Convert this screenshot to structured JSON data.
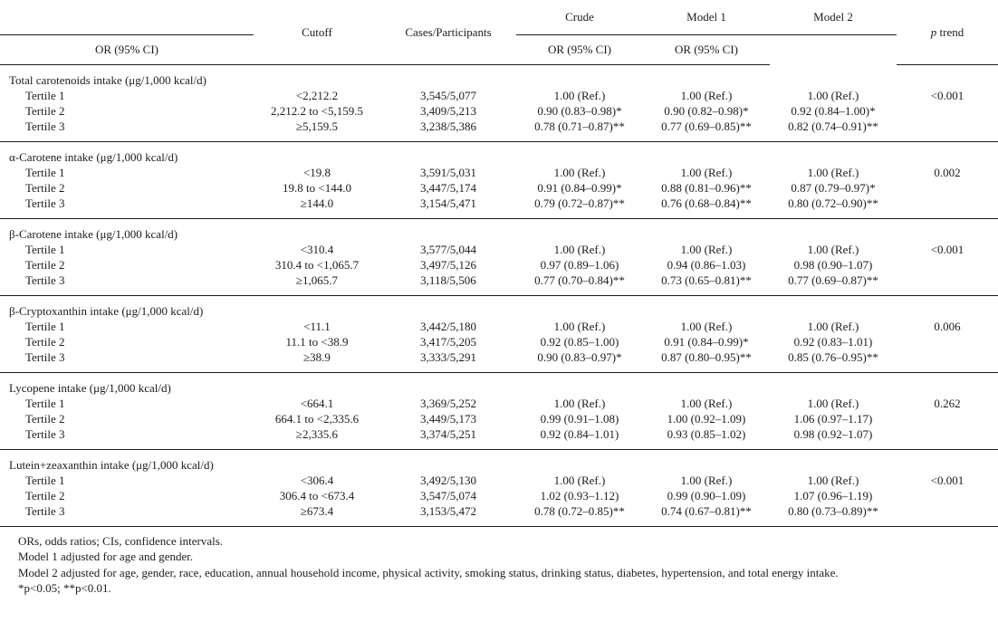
{
  "table": {
    "header": {
      "cutoff": "Cutoff",
      "cases": "Cases/Participants",
      "groups": [
        "Crude",
        "Model 1",
        "Model 2"
      ],
      "or_ci": "OR (95% CI)",
      "p_trend_italic": "p",
      "p_trend_rest": " trend"
    },
    "sections": [
      {
        "title": "Total carotenoids intake (μg/1,000 kcal/d)",
        "p_trend": "<0.001",
        "rows": [
          {
            "label": "Tertile 1",
            "cutoff": "<2,212.2",
            "cases": "3,545/5,077",
            "crude": "1.00 (Ref.)",
            "model1": "1.00 (Ref.)",
            "model2": "1.00 (Ref.)"
          },
          {
            "label": "Tertile 2",
            "cutoff": "2,212.2 to <5,159.5",
            "cases": "3,409/5,213",
            "crude": "0.90 (0.83–0.98)*",
            "model1": "0.90 (0.82–0.98)*",
            "model2": "0.92 (0.84–1.00)*"
          },
          {
            "label": "Tertile 3",
            "cutoff": "≥5,159.5",
            "cases": "3,238/5,386",
            "crude": "0.78 (0.71–0.87)**",
            "model1": "0.77 (0.69–0.85)**",
            "model2": "0.82 (0.74–0.91)**"
          }
        ]
      },
      {
        "title": "α-Carotene intake (μg/1,000 kcal/d)",
        "p_trend": "0.002",
        "rows": [
          {
            "label": "Tertile 1",
            "cutoff": "<19.8",
            "cases": "3,591/5,031",
            "crude": "1.00 (Ref.)",
            "model1": "1.00 (Ref.)",
            "model2": "1.00 (Ref.)"
          },
          {
            "label": "Tertile 2",
            "cutoff": "19.8 to <144.0",
            "cases": "3,447/5,174",
            "crude": "0.91 (0.84–0.99)*",
            "model1": "0.88 (0.81–0.96)**",
            "model2": "0.87 (0.79–0.97)*"
          },
          {
            "label": "Tertile 3",
            "cutoff": "≥144.0",
            "cases": "3,154/5,471",
            "crude": "0.79 (0.72–0.87)**",
            "model1": "0.76 (0.68–0.84)**",
            "model2": "0.80 (0.72–0.90)**"
          }
        ]
      },
      {
        "title": "β-Carotene intake (μg/1,000 kcal/d)",
        "p_trend": "<0.001",
        "rows": [
          {
            "label": "Tertile 1",
            "cutoff": "<310.4",
            "cases": "3,577/5,044",
            "crude": "1.00 (Ref.)",
            "model1": "1.00 (Ref.)",
            "model2": "1.00 (Ref.)"
          },
          {
            "label": "Tertile 2",
            "cutoff": "310.4 to <1,065.7",
            "cases": "3,497/5,126",
            "crude": "0.97 (0.89–1.06)",
            "model1": "0.94 (0.86–1.03)",
            "model2": "0.98 (0.90–1.07)"
          },
          {
            "label": "Tertile 3",
            "cutoff": "≥1,065.7",
            "cases": "3,118/5,506",
            "crude": "0.77 (0.70–0.84)**",
            "model1": "0.73 (0.65–0.81)**",
            "model2": "0.77 (0.69–0.87)**"
          }
        ]
      },
      {
        "title": "β-Cryptoxanthin intake (μg/1,000 kcal/d)",
        "p_trend": "0.006",
        "rows": [
          {
            "label": "Tertile 1",
            "cutoff": "<11.1",
            "cases": "3,442/5,180",
            "crude": "1.00 (Ref.)",
            "model1": "1.00 (Ref.)",
            "model2": "1.00 (Ref.)"
          },
          {
            "label": "Tertile 2",
            "cutoff": "11.1 to <38.9",
            "cases": "3,417/5,205",
            "crude": "0.92 (0.85–1.00)",
            "model1": "0.91 (0.84–0.99)*",
            "model2": "0.92 (0.83–1.01)"
          },
          {
            "label": "Tertile 3",
            "cutoff": "≥38.9",
            "cases": "3,333/5,291",
            "crude": "0.90 (0.83–0.97)*",
            "model1": "0.87 (0.80–0.95)**",
            "model2": "0.85 (0.76–0.95)**"
          }
        ]
      },
      {
        "title": "Lycopene intake (μg/1,000 kcal/d)",
        "p_trend": "0.262",
        "rows": [
          {
            "label": "Tertile 1",
            "cutoff": "<664.1",
            "cases": "3,369/5,252",
            "crude": "1.00 (Ref.)",
            "model1": "1.00 (Ref.)",
            "model2": "1.00 (Ref.)"
          },
          {
            "label": "Tertile 2",
            "cutoff": "664.1 to <2,335.6",
            "cases": "3,449/5,173",
            "crude": "0.99 (0.91–1.08)",
            "model1": "1.00 (0.92–1.09)",
            "model2": "1.06 (0.97–1.17)"
          },
          {
            "label": "Tertile 3",
            "cutoff": "≥2,335.6",
            "cases": "3,374/5,251",
            "crude": "0.92 (0.84–1.01)",
            "model1": "0.93 (0.85–1.02)",
            "model2": "0.98 (0.92–1.07)"
          }
        ]
      },
      {
        "title": "Lutein+zeaxanthin intake (μg/1,000 kcal/d)",
        "p_trend": "<0.001",
        "rows": [
          {
            "label": "Tertile 1",
            "cutoff": "<306.4",
            "cases": "3,492/5,130",
            "crude": "1.00 (Ref.)",
            "model1": "1.00 (Ref.)",
            "model2": "1.00 (Ref.)"
          },
          {
            "label": "Tertile 2",
            "cutoff": "306.4 to <673.4",
            "cases": "3,547/5,074",
            "crude": "1.02 (0.93–1.12)",
            "model1": "0.99 (0.90–1.09)",
            "model2": "1.07 (0.96–1.19)"
          },
          {
            "label": "Tertile 3",
            "cutoff": "≥673.4",
            "cases": "3,153/5,472",
            "crude": "0.78 (0.72–0.85)**",
            "model1": "0.74 (0.67–0.81)**",
            "model2": "0.80 (0.73–0.89)**"
          }
        ]
      }
    ],
    "footnotes": [
      "ORs, odds ratios; CIs, confidence intervals.",
      "Model 1 adjusted for age and gender.",
      "Model 2 adjusted for age, gender, race, education, annual household income, physical activity, smoking status, drinking status, diabetes, hypertension, and total energy intake.",
      "*p<0.05; **p<0.01."
    ]
  }
}
